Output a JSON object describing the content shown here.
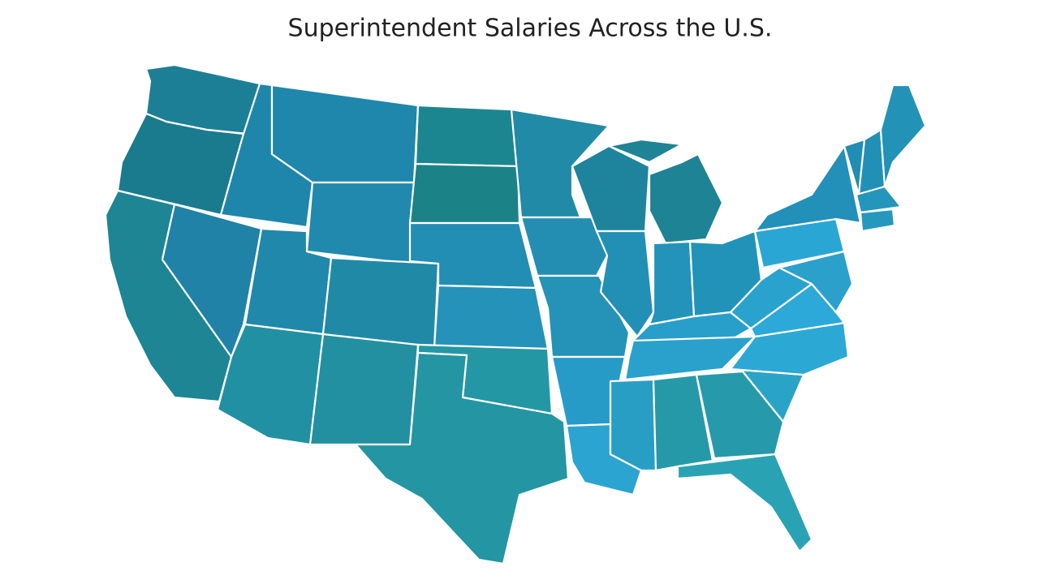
{
  "title": "Superintendent Salaries Across the U.S."
}
